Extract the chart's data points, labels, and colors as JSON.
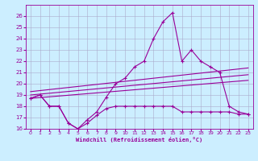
{
  "xlabel": "Windchill (Refroidissement éolien,°C)",
  "background_color": "#cceeff",
  "grid_color": "#aaaacc",
  "line_color": "#990099",
  "xlim": [
    -0.5,
    23.5
  ],
  "ylim": [
    16,
    27
  ],
  "yticks": [
    16,
    17,
    18,
    19,
    20,
    21,
    22,
    23,
    24,
    25,
    26
  ],
  "xticks": [
    0,
    1,
    2,
    3,
    4,
    5,
    6,
    7,
    8,
    9,
    10,
    11,
    12,
    13,
    14,
    15,
    16,
    17,
    18,
    19,
    20,
    21,
    22,
    23
  ],
  "spiky_x": [
    0,
    1,
    2,
    3,
    4,
    5,
    6,
    7,
    8,
    9,
    10,
    11,
    12,
    13,
    14,
    15,
    16,
    17,
    18,
    19,
    20,
    21,
    22,
    23
  ],
  "spiky_y": [
    18.7,
    19.0,
    18.0,
    18.0,
    16.5,
    16.0,
    16.8,
    17.5,
    18.8,
    20.0,
    20.5,
    21.5,
    22.0,
    24.0,
    25.5,
    26.3,
    22.0,
    23.0,
    22.0,
    21.5,
    21.0,
    18.0,
    17.5,
    17.3
  ],
  "lower_x": [
    0,
    1,
    2,
    3,
    4,
    5,
    6,
    7,
    8,
    9,
    10,
    11,
    12,
    13,
    14,
    15,
    16,
    17,
    18,
    19,
    20,
    21,
    22,
    23
  ],
  "lower_y": [
    18.7,
    19.0,
    18.0,
    18.0,
    16.5,
    16.0,
    16.5,
    17.2,
    17.8,
    18.0,
    18.0,
    18.0,
    18.0,
    18.0,
    18.0,
    18.0,
    17.5,
    17.5,
    17.5,
    17.5,
    17.5,
    17.5,
    17.3,
    17.3
  ],
  "line1_x": [
    0,
    23
  ],
  "line1_y": [
    18.7,
    20.3
  ],
  "line2_x": [
    0,
    23
  ],
  "line2_y": [
    19.0,
    20.8
  ],
  "line3_x": [
    0,
    23
  ],
  "line3_y": [
    19.3,
    21.4
  ]
}
